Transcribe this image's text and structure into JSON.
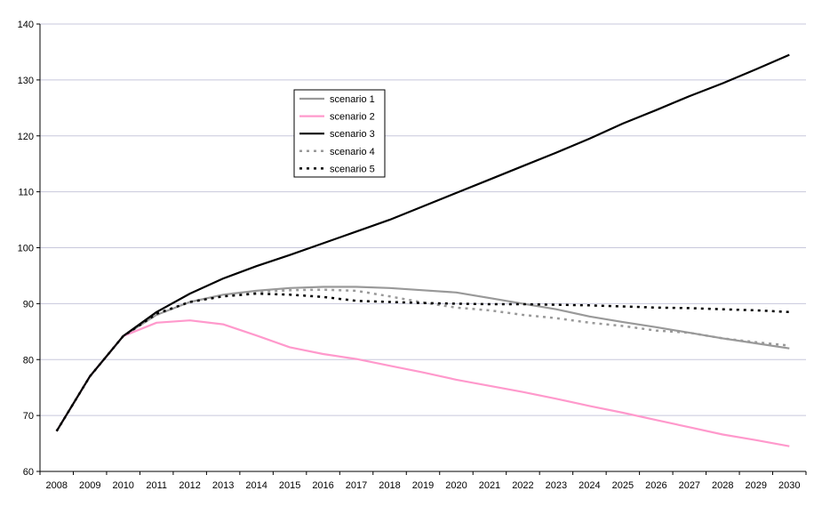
{
  "chart_data": {
    "type": "line",
    "title": "",
    "xlabel": "",
    "ylabel": "",
    "ylim": [
      60,
      140
    ],
    "y_ticks": [
      60,
      70,
      80,
      90,
      100,
      110,
      120,
      130,
      140
    ],
    "categories": [
      "2008",
      "2009",
      "2010",
      "2011",
      "2012",
      "2013",
      "2014",
      "2015",
      "2016",
      "2017",
      "2018",
      "2019",
      "2020",
      "2021",
      "2022",
      "2023",
      "2024",
      "2025",
      "2026",
      "2027",
      "2028",
      "2029",
      "2030"
    ],
    "grid": "horizontal",
    "legend_position": "upper-left-center",
    "series": [
      {
        "name": "scenario 1",
        "color": "#999999",
        "style": "solid",
        "values": [
          67.2,
          77.0,
          84.2,
          88.0,
          90.3,
          91.6,
          92.3,
          92.8,
          93.0,
          93.0,
          92.8,
          92.4,
          92.0,
          91.0,
          90.0,
          89.0,
          87.7,
          86.7,
          85.8,
          84.8,
          83.8,
          82.9,
          82.0
        ]
      },
      {
        "name": "scenario 2",
        "color": "#ff99cc",
        "style": "solid",
        "values": [
          67.2,
          77.0,
          84.2,
          86.6,
          87.0,
          86.3,
          84.3,
          82.2,
          81.0,
          80.1,
          78.9,
          77.7,
          76.4,
          75.3,
          74.2,
          73.0,
          71.7,
          70.5,
          69.2,
          67.9,
          66.6,
          65.6,
          64.5
        ]
      },
      {
        "name": "scenario 3",
        "color": "#000000",
        "style": "solid",
        "values": [
          67.2,
          77.0,
          84.2,
          88.5,
          91.8,
          94.5,
          96.7,
          98.7,
          100.8,
          102.9,
          105.0,
          107.4,
          109.8,
          112.2,
          114.6,
          117.0,
          119.5,
          122.2,
          124.6,
          127.1,
          129.4,
          131.9,
          134.5
        ]
      },
      {
        "name": "scenario 4",
        "color": "#999999",
        "style": "dotted",
        "values": [
          67.2,
          77.0,
          84.2,
          88.0,
          90.3,
          91.5,
          92.1,
          92.4,
          92.5,
          92.3,
          91.3,
          90.2,
          89.3,
          88.8,
          88.0,
          87.4,
          86.6,
          86.0,
          85.2,
          84.8,
          83.8,
          83.1,
          82.5
        ]
      },
      {
        "name": "scenario 5",
        "color": "#000000",
        "style": "dotted",
        "values": [
          67.2,
          77.0,
          84.2,
          88.2,
          90.3,
          91.3,
          91.8,
          91.6,
          91.2,
          90.5,
          90.3,
          90.1,
          90.0,
          89.9,
          89.9,
          89.8,
          89.7,
          89.5,
          89.3,
          89.2,
          89.0,
          88.8,
          88.5
        ]
      }
    ]
  }
}
